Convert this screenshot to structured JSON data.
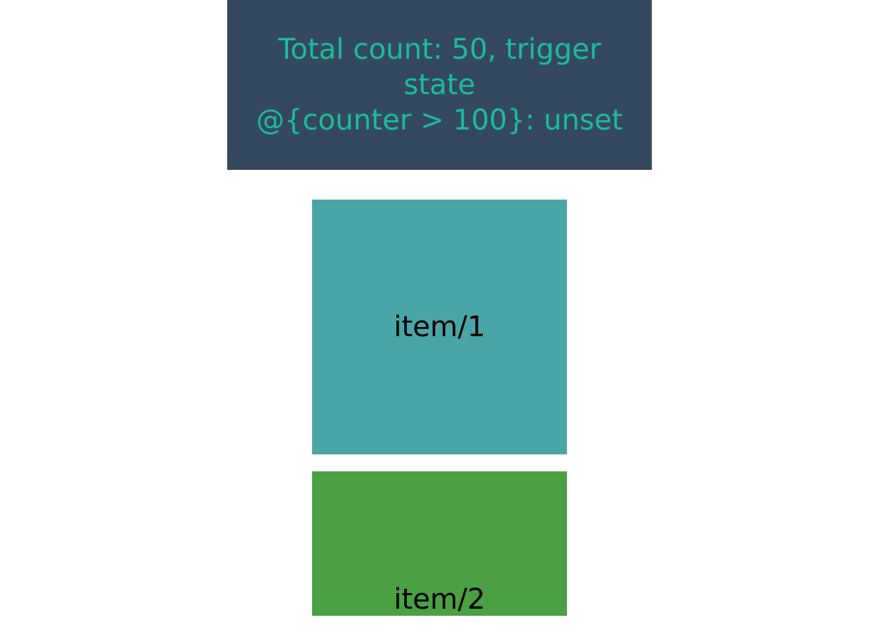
{
  "header": {
    "line1": "Total count: 50, trigger state",
    "line2": "@{counter > 100}: unset",
    "background": "#34495e",
    "text_color": "#1abc9c"
  },
  "items": [
    {
      "label": "item/1",
      "color": "#4aa5a6"
    },
    {
      "label": "item/2",
      "color": "#4aa042"
    }
  ]
}
